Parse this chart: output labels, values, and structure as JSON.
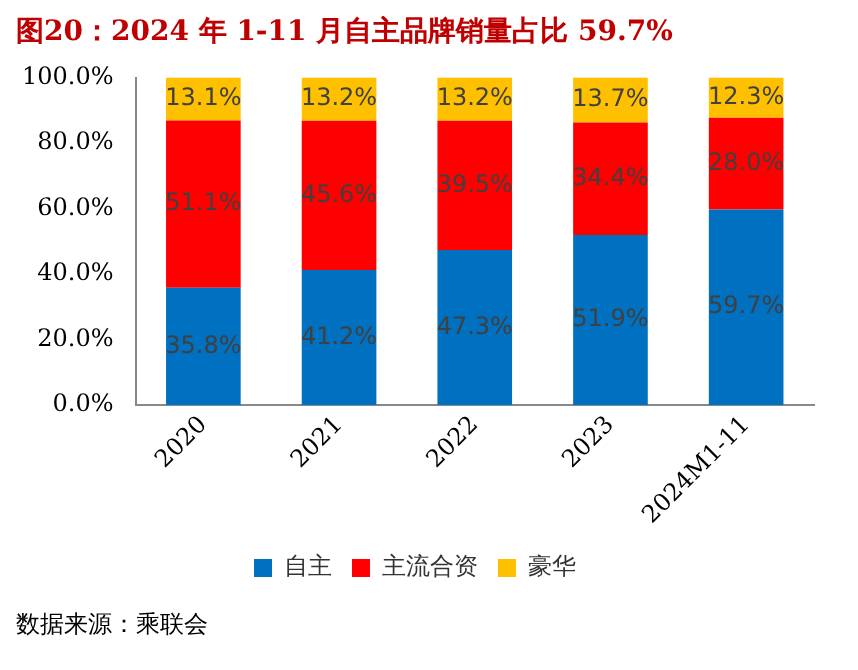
{
  "chart_data": {
    "type": "bar",
    "title": "图20：2024 年 1-11 月自主品牌销量占比 59.7%",
    "stacked": true,
    "categories": [
      "2020",
      "2021",
      "2022",
      "2023",
      "2024M1-11"
    ],
    "series": [
      {
        "name": "自主",
        "color": "#0070c0",
        "values": [
          35.8,
          41.2,
          47.3,
          51.9,
          59.7
        ],
        "value_labels": [
          "35.8%",
          "41.2%",
          "47.3%",
          "51.9%",
          "59.7%"
        ]
      },
      {
        "name": "主流合资",
        "color": "#ff0000",
        "values": [
          51.1,
          45.6,
          39.5,
          34.4,
          28.0
        ],
        "value_labels": [
          "51.1%",
          "45.6%",
          "39.5%",
          "34.4%",
          "28.0%"
        ]
      },
      {
        "name": "豪华",
        "color": "#ffc000",
        "values": [
          13.1,
          13.2,
          13.2,
          13.7,
          12.3
        ],
        "value_labels": [
          "13.1%",
          "13.2%",
          "13.2%",
          "13.7%",
          "12.3%"
        ]
      }
    ],
    "ylim": [
      0,
      100
    ],
    "yticks": [
      {
        "value": 0,
        "label": "0.0%"
      },
      {
        "value": 20,
        "label": "20.0%"
      },
      {
        "value": 40,
        "label": "40.0%"
      },
      {
        "value": 60,
        "label": "60.0%"
      },
      {
        "value": 80,
        "label": "80.0%"
      },
      {
        "value": 100,
        "label": "100.0%"
      }
    ],
    "grid": false,
    "legend": "bottom",
    "annotations": [
      "数据来源：乘联会"
    ]
  }
}
